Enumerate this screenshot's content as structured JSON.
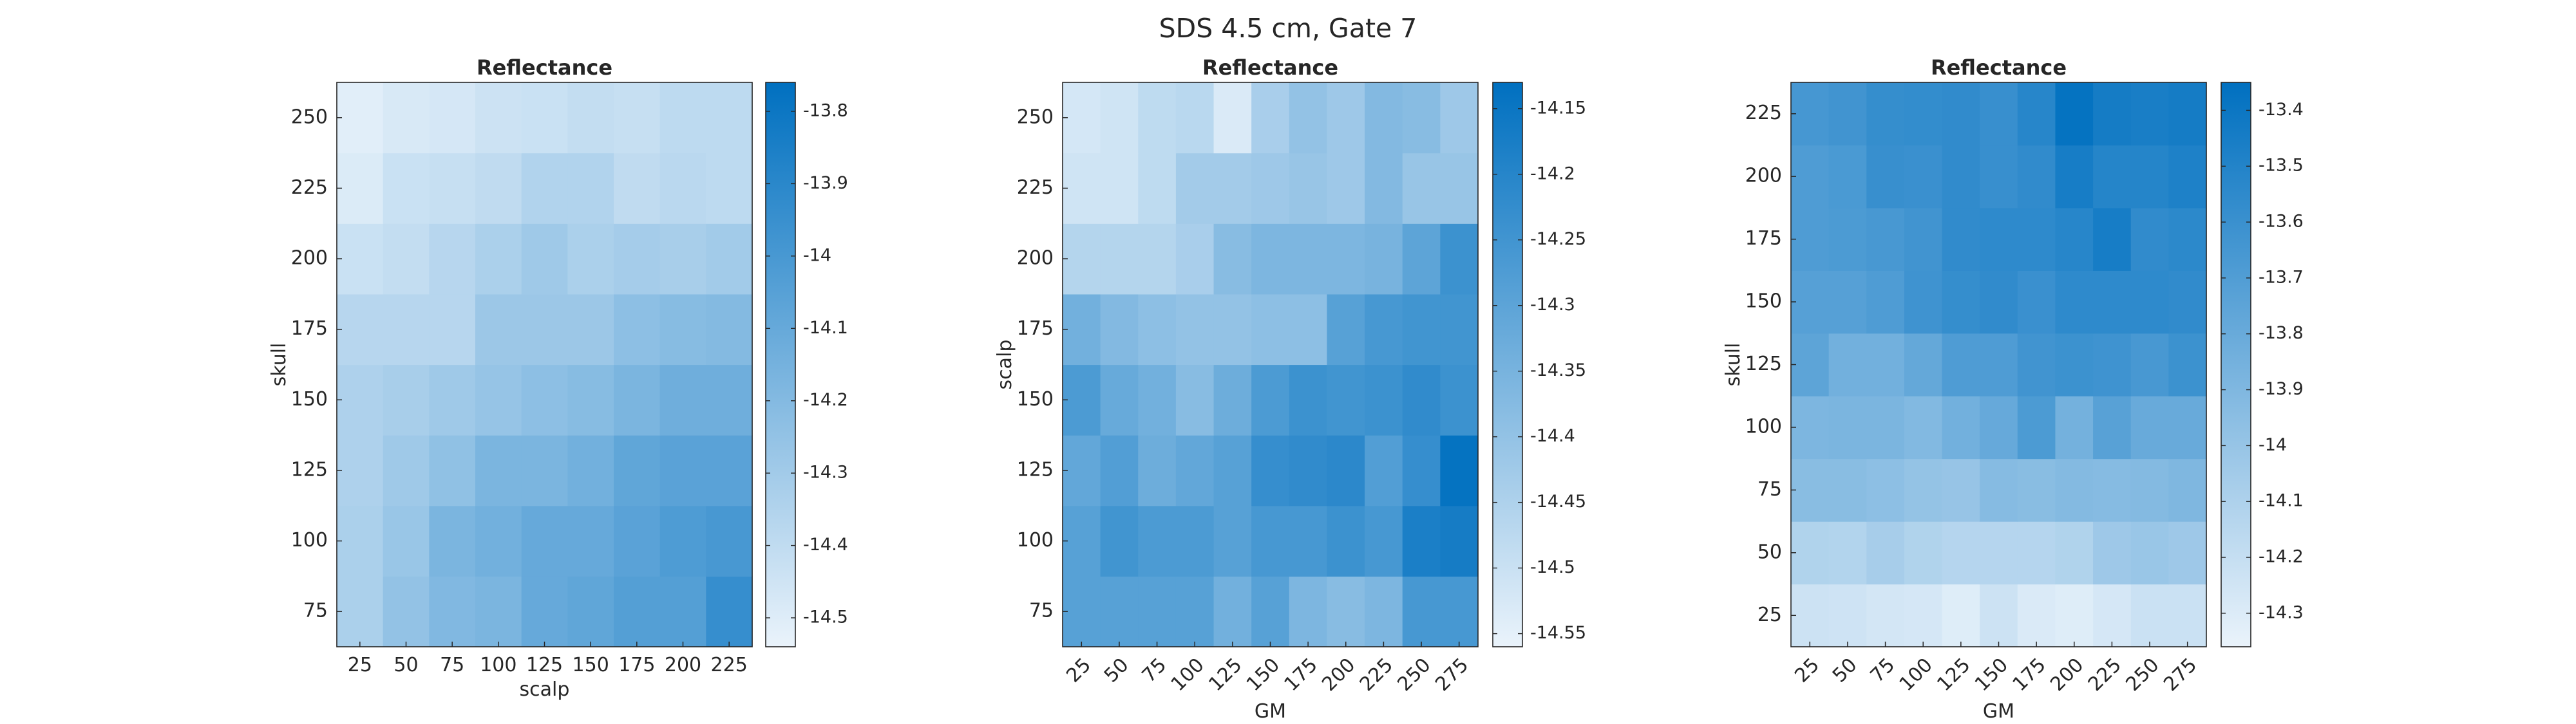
{
  "figure": {
    "title": "SDS 4.5 cm, Gate 7"
  },
  "chart_data": [
    {
      "type": "heatmap",
      "title": "Reflectance",
      "xlabel": "scalp",
      "ylabel": "skull",
      "x": [
        25,
        50,
        75,
        100,
        125,
        150,
        175,
        200,
        225
      ],
      "y": [
        75,
        100,
        125,
        150,
        175,
        200,
        225,
        250
      ],
      "x_tick_rotation": 0,
      "colorbar": {
        "ticks": [
          -13.8,
          -13.9,
          -14,
          -14.1,
          -14.2,
          -14.3,
          -14.4,
          -14.5
        ],
        "tick_labels": [
          "-13.8",
          "-13.9",
          "-14",
          "-14.1",
          "-14.2",
          "-14.3",
          "-14.4",
          "-14.5"
        ],
        "range": [
          -14.54,
          -13.76
        ]
      },
      "colormap": [
        "#eaf3fb",
        "#0070c0"
      ],
      "values": [
        [
          -14.33,
          -14.25,
          -14.19,
          -14.17,
          -14.1,
          -14.08,
          -14.04,
          -14.04,
          -13.94
        ],
        [
          -14.33,
          -14.27,
          -14.17,
          -14.14,
          -14.1,
          -14.1,
          -14.06,
          -14.02,
          -14.0
        ],
        [
          -14.34,
          -14.29,
          -14.24,
          -14.17,
          -14.17,
          -14.14,
          -14.08,
          -14.06,
          -14.06
        ],
        [
          -14.34,
          -14.32,
          -14.29,
          -14.26,
          -14.23,
          -14.21,
          -14.17,
          -14.13,
          -14.13
        ],
        [
          -14.37,
          -14.37,
          -14.37,
          -14.28,
          -14.28,
          -14.28,
          -14.23,
          -14.21,
          -14.2
        ],
        [
          -14.43,
          -14.41,
          -14.37,
          -14.33,
          -14.29,
          -14.33,
          -14.31,
          -14.32,
          -14.3
        ],
        [
          -14.49,
          -14.43,
          -14.42,
          -14.4,
          -14.35,
          -14.35,
          -14.4,
          -14.38,
          -14.39
        ],
        [
          -14.51,
          -14.48,
          -14.47,
          -14.44,
          -14.43,
          -14.41,
          -14.42,
          -14.39,
          -14.39
        ]
      ]
    },
    {
      "type": "heatmap",
      "title": "Reflectance",
      "xlabel": "GM",
      "ylabel": "scalp",
      "x": [
        25,
        50,
        75,
        100,
        125,
        150,
        175,
        200,
        225,
        250,
        275
      ],
      "y": [
        75,
        100,
        125,
        150,
        175,
        200,
        225,
        250
      ],
      "x_tick_rotation": -45,
      "colorbar": {
        "ticks": [
          -14.15,
          -14.2,
          -14.25,
          -14.3,
          -14.35,
          -14.4,
          -14.45,
          -14.5,
          -14.55
        ],
        "tick_labels": [
          "-14.15",
          "-14.2",
          "-14.25",
          "-14.3",
          "-14.35",
          "-14.4",
          "-14.45",
          "-14.5",
          "-14.55"
        ],
        "range": [
          -14.56,
          -14.13
        ]
      },
      "colormap": [
        "#eaf3fb",
        "#0070c0"
      ],
      "values": [
        [
          -14.29,
          -14.29,
          -14.29,
          -14.29,
          -14.34,
          -14.29,
          -14.36,
          -14.38,
          -14.36,
          -14.26,
          -14.26
        ],
        [
          -14.29,
          -14.25,
          -14.27,
          -14.27,
          -14.29,
          -14.26,
          -14.26,
          -14.24,
          -14.26,
          -14.18,
          -14.17
        ],
        [
          -14.31,
          -14.28,
          -14.33,
          -14.31,
          -14.29,
          -14.23,
          -14.22,
          -14.21,
          -14.28,
          -14.23,
          -14.14
        ],
        [
          -14.27,
          -14.32,
          -14.34,
          -14.38,
          -14.33,
          -14.27,
          -14.24,
          -14.25,
          -14.24,
          -14.22,
          -14.24
        ],
        [
          -14.34,
          -14.37,
          -14.39,
          -14.4,
          -14.4,
          -14.39,
          -14.39,
          -14.29,
          -14.26,
          -14.25,
          -14.25
        ],
        [
          -14.46,
          -14.46,
          -14.46,
          -14.44,
          -14.38,
          -14.36,
          -14.36,
          -14.36,
          -14.35,
          -14.3,
          -14.24
        ],
        [
          -14.51,
          -14.51,
          -14.48,
          -14.43,
          -14.43,
          -14.42,
          -14.41,
          -14.42,
          -14.37,
          -14.41,
          -14.41
        ],
        [
          -14.52,
          -14.51,
          -14.48,
          -14.47,
          -14.53,
          -14.44,
          -14.4,
          -14.42,
          -14.37,
          -14.38,
          -14.42
        ]
      ]
    },
    {
      "type": "heatmap",
      "title": "Reflectance",
      "xlabel": "GM",
      "ylabel": "skull",
      "x": [
        25,
        50,
        75,
        100,
        125,
        150,
        175,
        200,
        225,
        250,
        275
      ],
      "y": [
        25,
        50,
        75,
        100,
        125,
        150,
        175,
        200,
        225
      ],
      "x_tick_rotation": -45,
      "colorbar": {
        "ticks": [
          -13.4,
          -13.5,
          -13.6,
          -13.7,
          -13.8,
          -13.9,
          -14,
          -14.1,
          -14.2,
          -14.3
        ],
        "tick_labels": [
          "-13.4",
          "-13.5",
          "-13.6",
          "-13.7",
          "-13.8",
          "-13.9",
          "-14",
          "-14.1",
          "-14.2",
          "-14.3"
        ],
        "range": [
          -14.36,
          -13.35
        ]
      },
      "colormap": [
        "#eaf3fb",
        "#0070c0"
      ],
      "values": [
        [
          -14.23,
          -14.24,
          -14.26,
          -14.27,
          -14.31,
          -14.23,
          -14.29,
          -14.31,
          -14.27,
          -14.22,
          -14.22
        ],
        [
          -14.11,
          -14.12,
          -14.07,
          -14.11,
          -14.13,
          -14.13,
          -14.13,
          -14.11,
          -14.03,
          -14.01,
          -14.03
        ],
        [
          -13.94,
          -13.94,
          -13.96,
          -13.99,
          -14.0,
          -13.93,
          -13.94,
          -13.92,
          -13.93,
          -13.92,
          -13.9
        ],
        [
          -13.89,
          -13.88,
          -13.88,
          -13.91,
          -13.84,
          -13.79,
          -13.68,
          -13.85,
          -13.73,
          -13.8,
          -13.8
        ],
        [
          -13.75,
          -13.84,
          -13.84,
          -13.78,
          -13.69,
          -13.69,
          -13.63,
          -13.61,
          -13.62,
          -13.66,
          -13.61
        ],
        [
          -13.72,
          -13.72,
          -13.69,
          -13.62,
          -13.58,
          -13.56,
          -13.6,
          -13.55,
          -13.55,
          -13.55,
          -13.56
        ],
        [
          -13.69,
          -13.68,
          -13.66,
          -13.63,
          -13.56,
          -13.55,
          -13.55,
          -13.52,
          -13.45,
          -13.56,
          -13.54
        ],
        [
          -13.69,
          -13.67,
          -13.59,
          -13.6,
          -13.56,
          -13.59,
          -13.56,
          -13.45,
          -13.51,
          -13.51,
          -13.48
        ],
        [
          -13.65,
          -13.63,
          -13.58,
          -13.57,
          -13.56,
          -13.59,
          -13.52,
          -13.37,
          -13.44,
          -13.46,
          -13.44
        ]
      ]
    }
  ]
}
